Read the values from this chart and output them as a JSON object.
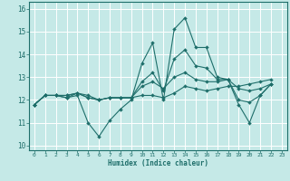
{
  "xlabel": "Humidex (Indice chaleur)",
  "xlim": [
    -0.5,
    23.5
  ],
  "ylim": [
    9.8,
    16.3
  ],
  "xticks": [
    0,
    1,
    2,
    3,
    4,
    5,
    6,
    7,
    8,
    9,
    10,
    11,
    12,
    13,
    14,
    15,
    16,
    17,
    18,
    19,
    20,
    21,
    22,
    23
  ],
  "yticks": [
    10,
    11,
    12,
    13,
    14,
    15,
    16
  ],
  "bg_color": "#c5e9e7",
  "line_color": "#1e6e6a",
  "grid_color": "#ffffff",
  "lines": [
    [
      11.8,
      12.2,
      12.2,
      12.1,
      12.2,
      11.0,
      10.4,
      11.1,
      11.6,
      12.0,
      13.6,
      14.5,
      12.0,
      15.1,
      15.6,
      14.3,
      14.3,
      13.0,
      12.9,
      11.8,
      11.0,
      12.2,
      12.7
    ],
    [
      11.8,
      12.2,
      12.2,
      12.1,
      12.3,
      12.2,
      12.0,
      12.1,
      12.1,
      12.1,
      12.2,
      12.2,
      12.1,
      12.3,
      12.6,
      12.5,
      12.4,
      12.5,
      12.6,
      12.6,
      12.7,
      12.8,
      12.9
    ],
    [
      11.8,
      12.2,
      12.2,
      12.2,
      12.3,
      12.1,
      12.0,
      12.1,
      12.1,
      12.1,
      12.6,
      12.8,
      12.5,
      13.0,
      13.2,
      12.9,
      12.8,
      12.8,
      12.9,
      12.5,
      12.4,
      12.5,
      12.7
    ],
    [
      11.8,
      12.2,
      12.2,
      12.2,
      12.3,
      12.1,
      12.0,
      12.1,
      12.1,
      12.1,
      12.8,
      13.2,
      12.4,
      13.8,
      14.2,
      13.5,
      13.4,
      12.9,
      12.9,
      12.0,
      11.9,
      12.2,
      12.7
    ]
  ],
  "x_values": [
    0,
    1,
    2,
    3,
    4,
    5,
    6,
    7,
    8,
    9,
    10,
    11,
    12,
    13,
    14,
    15,
    16,
    17,
    18,
    19,
    20,
    21,
    22
  ]
}
